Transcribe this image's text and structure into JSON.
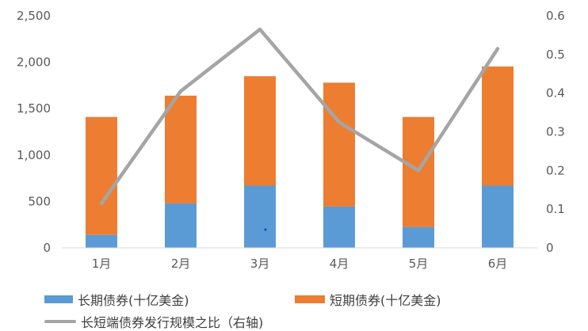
{
  "chart_data": {
    "type": "bar",
    "stacked": true,
    "categories": [
      "1月",
      "2月",
      "3月",
      "4月",
      "5月",
      "6月"
    ],
    "series": [
      {
        "name": "长期债券(十亿美金)",
        "type": "bar",
        "axis": "left",
        "color": "#5b9bd5",
        "values": [
          140,
          480,
          670,
          445,
          225,
          670
        ]
      },
      {
        "name": "短期债券(十亿美金)",
        "type": "bar",
        "axis": "left",
        "color": "#ed7d31",
        "values": [
          1270,
          1160,
          1180,
          1335,
          1185,
          1285
        ]
      },
      {
        "name": "长短端债券发行规模之比（右轴)",
        "type": "line",
        "axis": "right",
        "color": "#a5a5a5",
        "values": [
          0.115,
          0.405,
          0.565,
          0.325,
          0.2,
          0.515
        ]
      }
    ],
    "left_axis": {
      "min": 0,
      "max": 2500,
      "ticks": [
        "0",
        "500",
        "1,000",
        "1,500",
        "2,000",
        "2,500"
      ]
    },
    "right_axis": {
      "min": 0,
      "max": 0.6,
      "ticks": [
        "0",
        "0.1",
        "0.2",
        "0.3",
        "0.4",
        "0.5",
        "0.6"
      ]
    },
    "grid": false,
    "legend_position": "bottom"
  }
}
